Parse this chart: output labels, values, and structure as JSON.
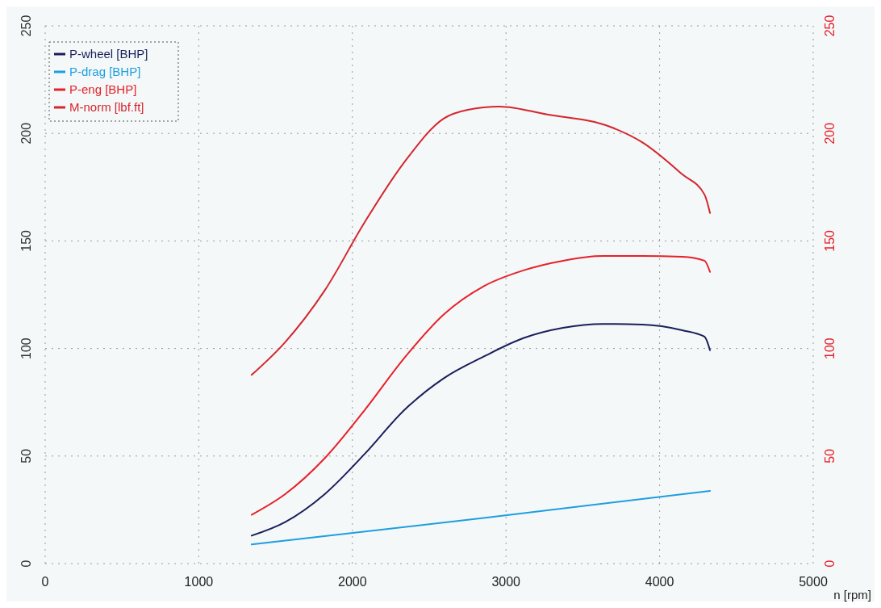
{
  "chart_data": {
    "type": "line",
    "xlabel": "n [rpm]",
    "xlim": [
      0,
      5000
    ],
    "xticks": [
      0,
      1000,
      2000,
      3000,
      4000,
      5000
    ],
    "ylim": [
      0,
      250
    ],
    "yticks": [
      0,
      50,
      100,
      150,
      200,
      250
    ],
    "y2lim": [
      0,
      250
    ],
    "y2ticks": [
      0,
      50,
      100,
      150,
      200,
      250
    ],
    "grid": true,
    "legend": "top left",
    "line_style": "solid",
    "series": [
      {
        "name": "P-wheel [BHP]",
        "color": "#1a1f5a",
        "x": [
          1344,
          1562,
          1820,
          2079,
          2337,
          2596,
          2854,
          3113,
          3371,
          3630,
          3888,
          4147,
          4292,
          4328
        ],
        "values": [
          13,
          19.3,
          32.3,
          50.9,
          71.3,
          86.2,
          96.2,
          104.8,
          109.6,
          111.4,
          111.1,
          108.5,
          105.5,
          99.2
        ]
      },
      {
        "name": "P-drag [BHP]",
        "color": "#1e9ee0",
        "x": [
          1344,
          2854,
          4328
        ],
        "values": [
          8.9,
          21.2,
          33.8
        ]
      },
      {
        "name": "P-eng [BHP]",
        "color": "#e8202a",
        "x": [
          1344,
          1562,
          1820,
          2079,
          2337,
          2596,
          2854,
          3113,
          3371,
          3630,
          3888,
          4147,
          4292,
          4328
        ],
        "values": [
          22.7,
          32.3,
          49,
          71.3,
          95.5,
          115.9,
          128.9,
          136.3,
          140.8,
          143,
          143,
          142.6,
          140.8,
          135.6
        ]
      },
      {
        "name": "M-norm [lbf.ft]",
        "color": "#d4262e",
        "x": [
          1344,
          1562,
          1820,
          2079,
          2337,
          2596,
          2751,
          2958,
          3268,
          3681,
          3888,
          4147,
          4292,
          4328
        ],
        "values": [
          87.7,
          102.9,
          127,
          158.6,
          186.5,
          207,
          211,
          212.5,
          208.8,
          203,
          195.8,
          181,
          171.6,
          163
        ]
      }
    ]
  }
}
